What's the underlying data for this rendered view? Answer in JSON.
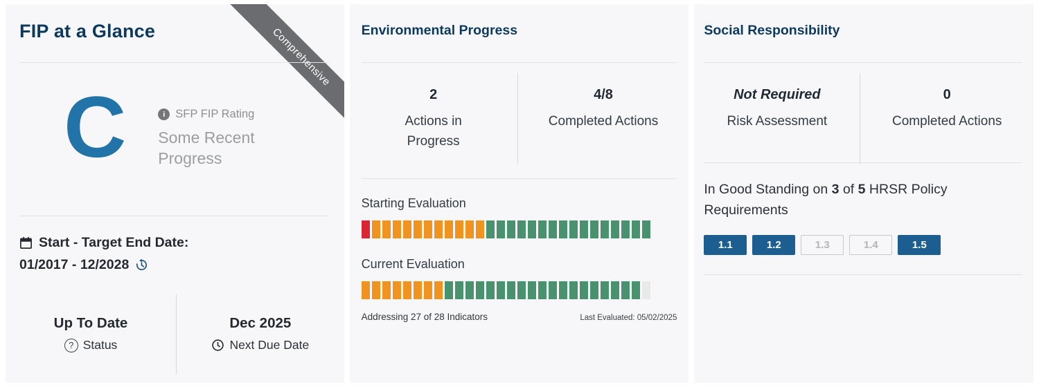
{
  "colors": {
    "heading_navy": "#0d3a5c",
    "accent_blue": "#2173a8",
    "ribbon_gray": "#6b6c6f",
    "badge_active": "#1d5e91",
    "segment_red": "#d92632",
    "segment_orange": "#f0941f",
    "segment_green": "#4a9170",
    "segment_gray": "#e9e9ea"
  },
  "left_panel": {
    "title": "FIP at a Glance",
    "ribbon": "Comprehensive",
    "rating": {
      "letter": "C",
      "label": "SFP FIP Rating",
      "info_icon": "info-icon",
      "description": "Some Recent Progress"
    },
    "dates": {
      "label": "Start - Target End Date:",
      "value": "01/2017 - 12/2028"
    },
    "status": {
      "value": "Up To Date",
      "label": "Status"
    },
    "next_due": {
      "value": "Dec 2025",
      "label": "Next Due Date"
    }
  },
  "environmental": {
    "title": "Environmental Progress",
    "stats": [
      {
        "value": "2",
        "label": "Actions in Progress"
      },
      {
        "value": "4/8",
        "label": "Completed Actions"
      }
    ],
    "starting_evaluation": {
      "label": "Starting Evaluation",
      "segments": [
        {
          "color": "red",
          "count": 1
        },
        {
          "color": "orange",
          "count": 11
        },
        {
          "color": "green",
          "count": 16
        }
      ]
    },
    "current_evaluation": {
      "label": "Current Evaluation",
      "segments": [
        {
          "color": "orange",
          "count": 8
        },
        {
          "color": "green",
          "count": 19
        },
        {
          "color": "gray",
          "count": 1
        }
      ]
    },
    "total_indicators": 28,
    "footer_left": "Addressing 27 of 28 Indicators",
    "footer_right": "Last Evaluated: 05/02/2025"
  },
  "social": {
    "title": "Social Responsibility",
    "stats": [
      {
        "value": "Not Required",
        "label": "Risk Assessment"
      },
      {
        "value": "0",
        "label": "Completed Actions"
      }
    ],
    "standing": {
      "prefix": "In Good Standing on ",
      "count": "3",
      "mid": " of ",
      "total": "5",
      "suffix": " HRSR Policy Requirements"
    },
    "badges": [
      {
        "label": "1.1",
        "active": true
      },
      {
        "label": "1.2",
        "active": true
      },
      {
        "label": "1.3",
        "active": false
      },
      {
        "label": "1.4",
        "active": false
      },
      {
        "label": "1.5",
        "active": true
      }
    ]
  }
}
